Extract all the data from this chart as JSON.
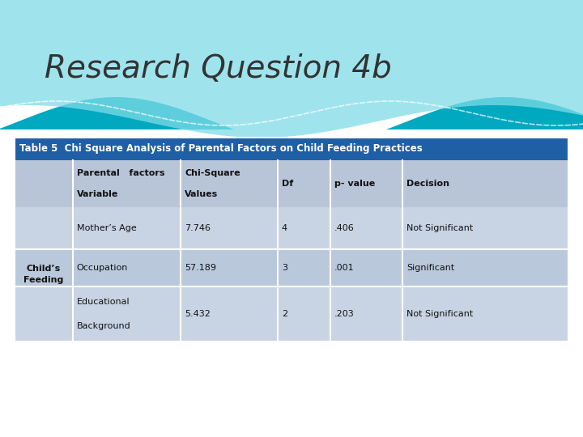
{
  "title": "Research Question 4b",
  "table_title": "Table 5  Chi Square Analysis of Parental Factors on Child Feeding Practices",
  "col0_header": "",
  "col1_header_line1": "Parental   factors",
  "col1_header_line2": "Variable",
  "col2_header_line1": "Chi-Square",
  "col2_header_line2": "Values",
  "col3_header": "Df",
  "col4_header": "p- value",
  "col5_header": "Decision",
  "row0": [
    "Child’s\nFeeding",
    "Mother’s Age",
    "7.746",
    "4",
    ".406",
    "Not Significant"
  ],
  "row1": [
    "",
    "Occupation",
    "57.189",
    "3",
    ".001",
    "Significant"
  ],
  "row2": [
    "",
    "Educational\n\nBackground",
    "5.432",
    "2",
    ".203",
    "Not Significant"
  ],
  "table_title_bg": "#1F5FA6",
  "table_title_fg": "#FFFFFF",
  "header_bg": "#B8C4D8",
  "row0_bg": "#C8D4E4",
  "row1_bg": "#BAC8DC",
  "row2_bg": "#C8D4E4",
  "border_color": "#FFFFFF",
  "text_color": "#111111",
  "teal_dark": "#00A8C0",
  "teal_light": "#7FDCE8",
  "wave_bg": "#FFFFFF",
  "title_color": "#333333",
  "slide_bg": "#FFFFFF"
}
